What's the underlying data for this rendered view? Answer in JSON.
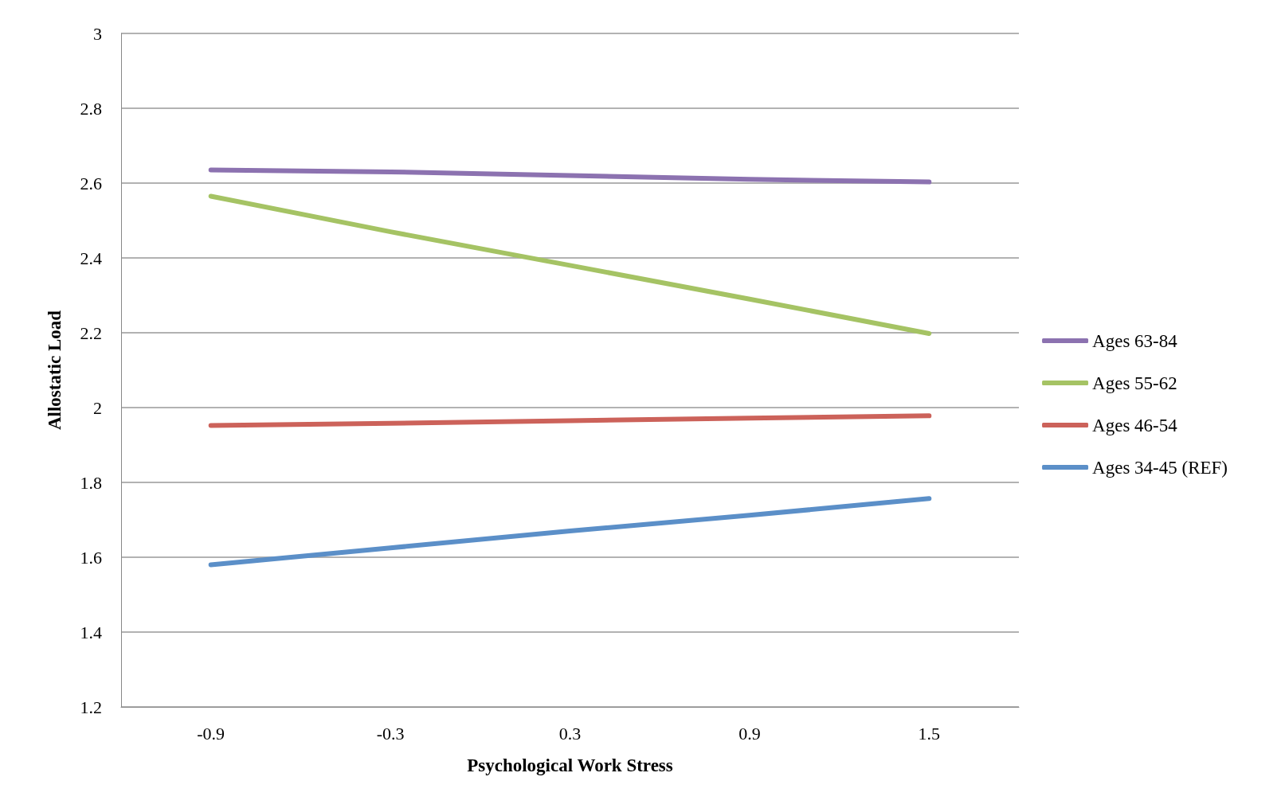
{
  "chart_data": {
    "type": "line",
    "xlabel": "Psychological Work Stress",
    "ylabel": "Allostatic Load",
    "categories": [
      "-0.9",
      "-0.3",
      "0.3",
      "0.9",
      "1.5"
    ],
    "series": [
      {
        "name": "Ages 63-84",
        "color": "#8c72b0",
        "values": [
          2.635,
          2.63,
          2.62,
          2.61,
          2.603
        ]
      },
      {
        "name": "Ages 55-62",
        "color": "#a5c364",
        "values": [
          2.565,
          2.47,
          2.38,
          2.29,
          2.198
        ]
      },
      {
        "name": "Ages 46-54",
        "color": "#cc625a",
        "values": [
          1.952,
          1.958,
          1.965,
          1.972,
          1.978
        ]
      },
      {
        "name": "Ages 34-45 (REF)",
        "color": "#5b8fc8",
        "values": [
          1.58,
          1.625,
          1.67,
          1.712,
          1.757
        ]
      }
    ],
    "ylim": [
      1.2,
      3
    ],
    "yticks": [
      1.2,
      1.4,
      1.6,
      1.8,
      2,
      2.2,
      2.4,
      2.6,
      2.8,
      3
    ],
    "grid": "y",
    "legend": "right",
    "marker": "none",
    "line_style": "solid"
  }
}
